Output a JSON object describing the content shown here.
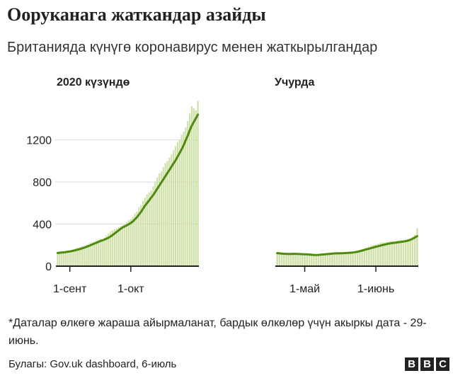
{
  "title": "Ооруканага жаткандар азайды",
  "subtitle": "Британияда күнүгө коронавирус менен жаткырылгандар",
  "footnote": "*Даталар өлкөгө жараша айырмаланат, бардык өлкөлөр үчүн акыркы дата - 29-июнь.",
  "source": "Булагы: Gov.uk dashboard, 6-июль",
  "logo": {
    "letters": [
      "B",
      "B",
      "C"
    ]
  },
  "colors": {
    "bar": "#cfe0a8",
    "line": "#4f8a10",
    "axis": "#222222",
    "grid": "#d9d9d9",
    "text": "#222222"
  },
  "chart_data": [
    {
      "type": "bar",
      "title": "2020 күзүндө",
      "ylim": [
        0,
        1500
      ],
      "yticks": [
        0,
        400,
        800,
        1200
      ],
      "ytick_labels": [
        "0",
        "400",
        "800",
        "1200"
      ],
      "xtick_labels": [
        "1-сент",
        "1-окт"
      ],
      "xtick_days": [
        0,
        30
      ],
      "start_day": -6,
      "values": [
        130,
        140,
        135,
        140,
        145,
        150,
        148,
        155,
        160,
        170,
        175,
        180,
        190,
        195,
        200,
        210,
        220,
        230,
        235,
        245,
        250,
        260,
        255,
        270,
        290,
        310,
        330,
        340,
        350,
        360,
        370,
        380,
        390,
        400,
        420,
        440,
        450,
        470,
        500,
        520,
        560,
        580,
        620,
        650,
        680,
        700,
        720,
        760,
        800,
        840,
        880,
        900,
        940,
        980,
        1000,
        1030,
        1060,
        1100,
        1140,
        1180,
        1200,
        1250,
        1280,
        1320,
        1380,
        1450,
        1520,
        1500,
        1480,
        1570
      ],
      "series": [
        {
          "name": "",
          "values": [
            125,
            127,
            129,
            131,
            134,
            137,
            140,
            144,
            148,
            153,
            158,
            163,
            169,
            175,
            182,
            190,
            198,
            206,
            214,
            222,
            230,
            238,
            245,
            252,
            260,
            270,
            282,
            295,
            310,
            325,
            340,
            355,
            368,
            378,
            388,
            398,
            410,
            425,
            445,
            465,
            490,
            515,
            545,
            575,
            600,
            625,
            650,
            675,
            705,
            735,
            765,
            795,
            825,
            855,
            885,
            915,
            945,
            975,
            1005,
            1040,
            1075,
            1110,
            1150,
            1195,
            1240,
            1290,
            1335,
            1370,
            1405,
            1440
          ]
        }
      ]
    },
    {
      "type": "bar",
      "title": "Учурда",
      "ylim": [
        0,
        1500
      ],
      "xtick_labels": [
        "1-май",
        "1-июнь"
      ],
      "xtick_days": [
        0,
        31
      ],
      "start_day": -12,
      "values": [
        135,
        128,
        122,
        118,
        120,
        116,
        115,
        118,
        120,
        117,
        114,
        113,
        112,
        110,
        108,
        106,
        105,
        104,
        108,
        112,
        115,
        118,
        122,
        125,
        128,
        127,
        130,
        126,
        123,
        125,
        128,
        132,
        135,
        138,
        142,
        148,
        155,
        162,
        170,
        178,
        186,
        194,
        202,
        208,
        214,
        220,
        225,
        228,
        232,
        236,
        240,
        238,
        242,
        246,
        250,
        248,
        252,
        258,
        266,
        278,
        300,
        360
      ],
      "series": [
        {
          "name": "",
          "values": [
            124,
            122,
            120,
            118,
            117,
            116,
            116,
            117,
            117,
            116,
            115,
            114,
            113,
            112,
            110,
            108,
            107,
            106,
            107,
            109,
            111,
            113,
            115,
            117,
            119,
            121,
            122,
            122,
            123,
            124,
            125,
            126,
            128,
            130,
            133,
            137,
            142,
            148,
            154,
            160,
            166,
            172,
            178,
            184,
            190,
            196,
            201,
            206,
            211,
            215,
            219,
            222,
            225,
            228,
            231,
            234,
            238,
            243,
            250,
            260,
            272,
            285
          ]
        }
      ]
    }
  ]
}
